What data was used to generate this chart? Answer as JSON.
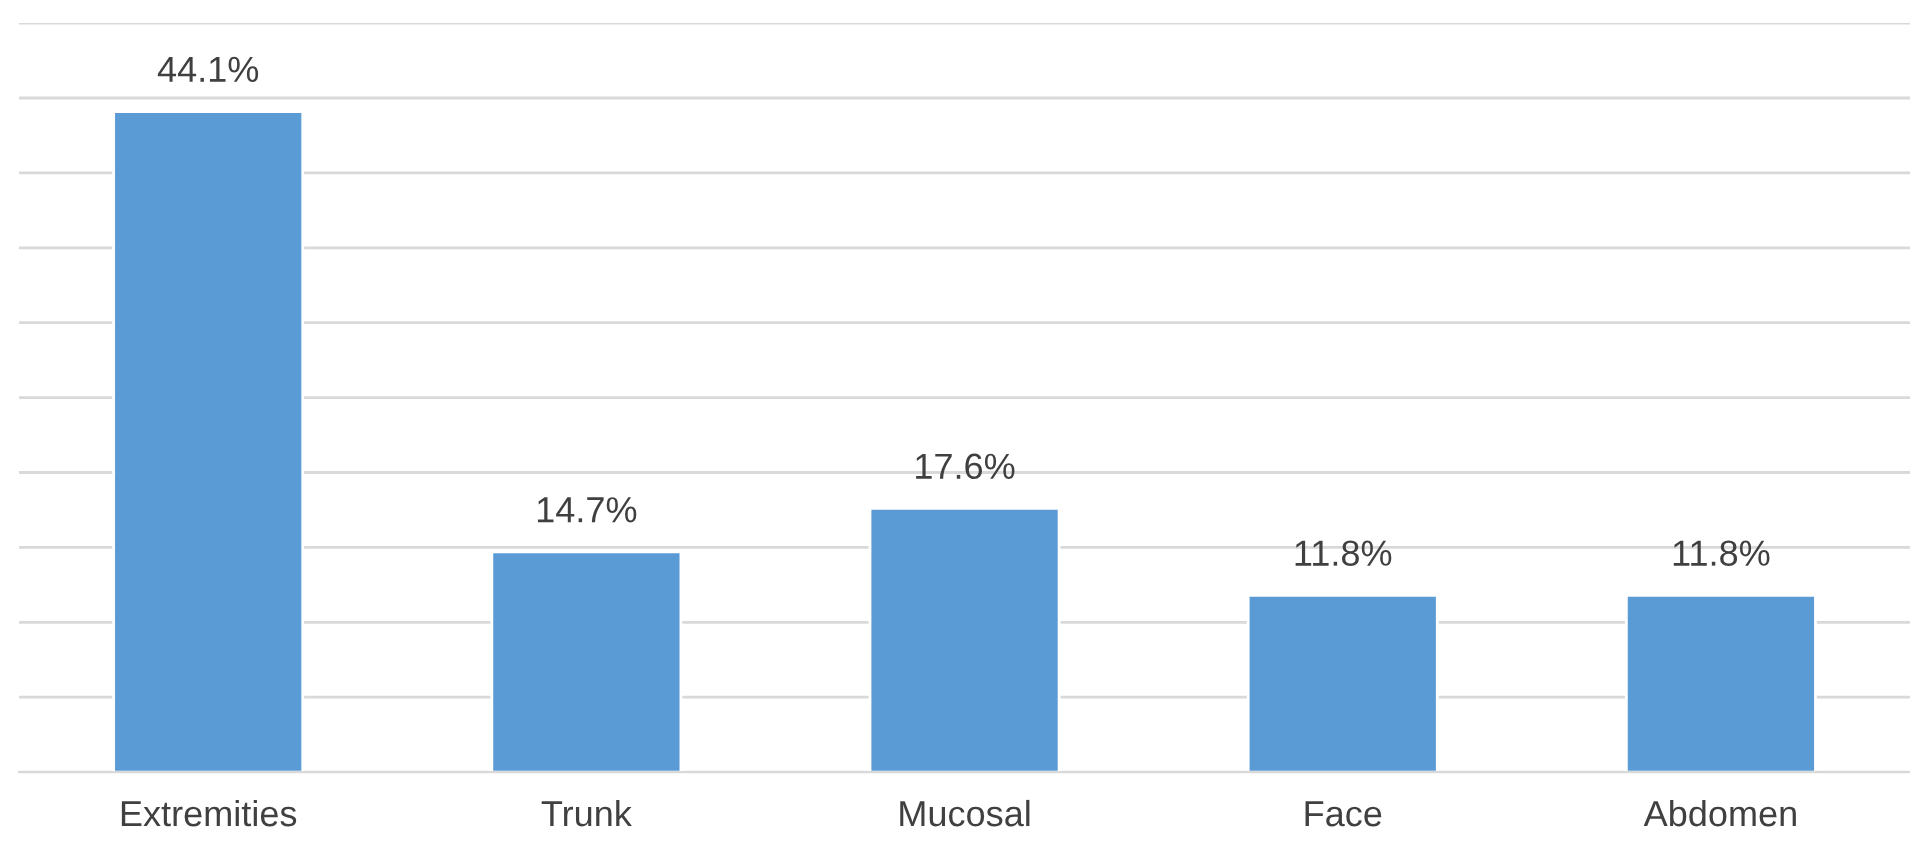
{
  "chart_data": {
    "type": "bar",
    "categories": [
      "Extremities",
      "Trunk",
      "Mucosal",
      "Face",
      "Abdomen"
    ],
    "values": [
      44.1,
      14.7,
      17.6,
      11.8,
      11.8
    ],
    "value_labels": [
      "44.1%",
      "14.7%",
      "17.6%",
      "11.8%",
      "11.8%"
    ],
    "color": "#5b9bd5",
    "ylim": [
      0,
      50
    ],
    "yticks": [
      {
        "value": 0,
        "label": null
      },
      {
        "value": 5,
        "label": null
      },
      {
        "value": 10,
        "label": null
      },
      {
        "value": 15,
        "label": null
      },
      {
        "value": 20,
        "label": null
      },
      {
        "value": 25,
        "label": null
      },
      {
        "value": 30,
        "label": null
      },
      {
        "value": 35,
        "label": null
      },
      {
        "value": 40,
        "label": null
      },
      {
        "value": 45,
        "label": null
      },
      {
        "value": 50,
        "label": null
      }
    ],
    "tick_labels": "x",
    "grid": "y"
  }
}
